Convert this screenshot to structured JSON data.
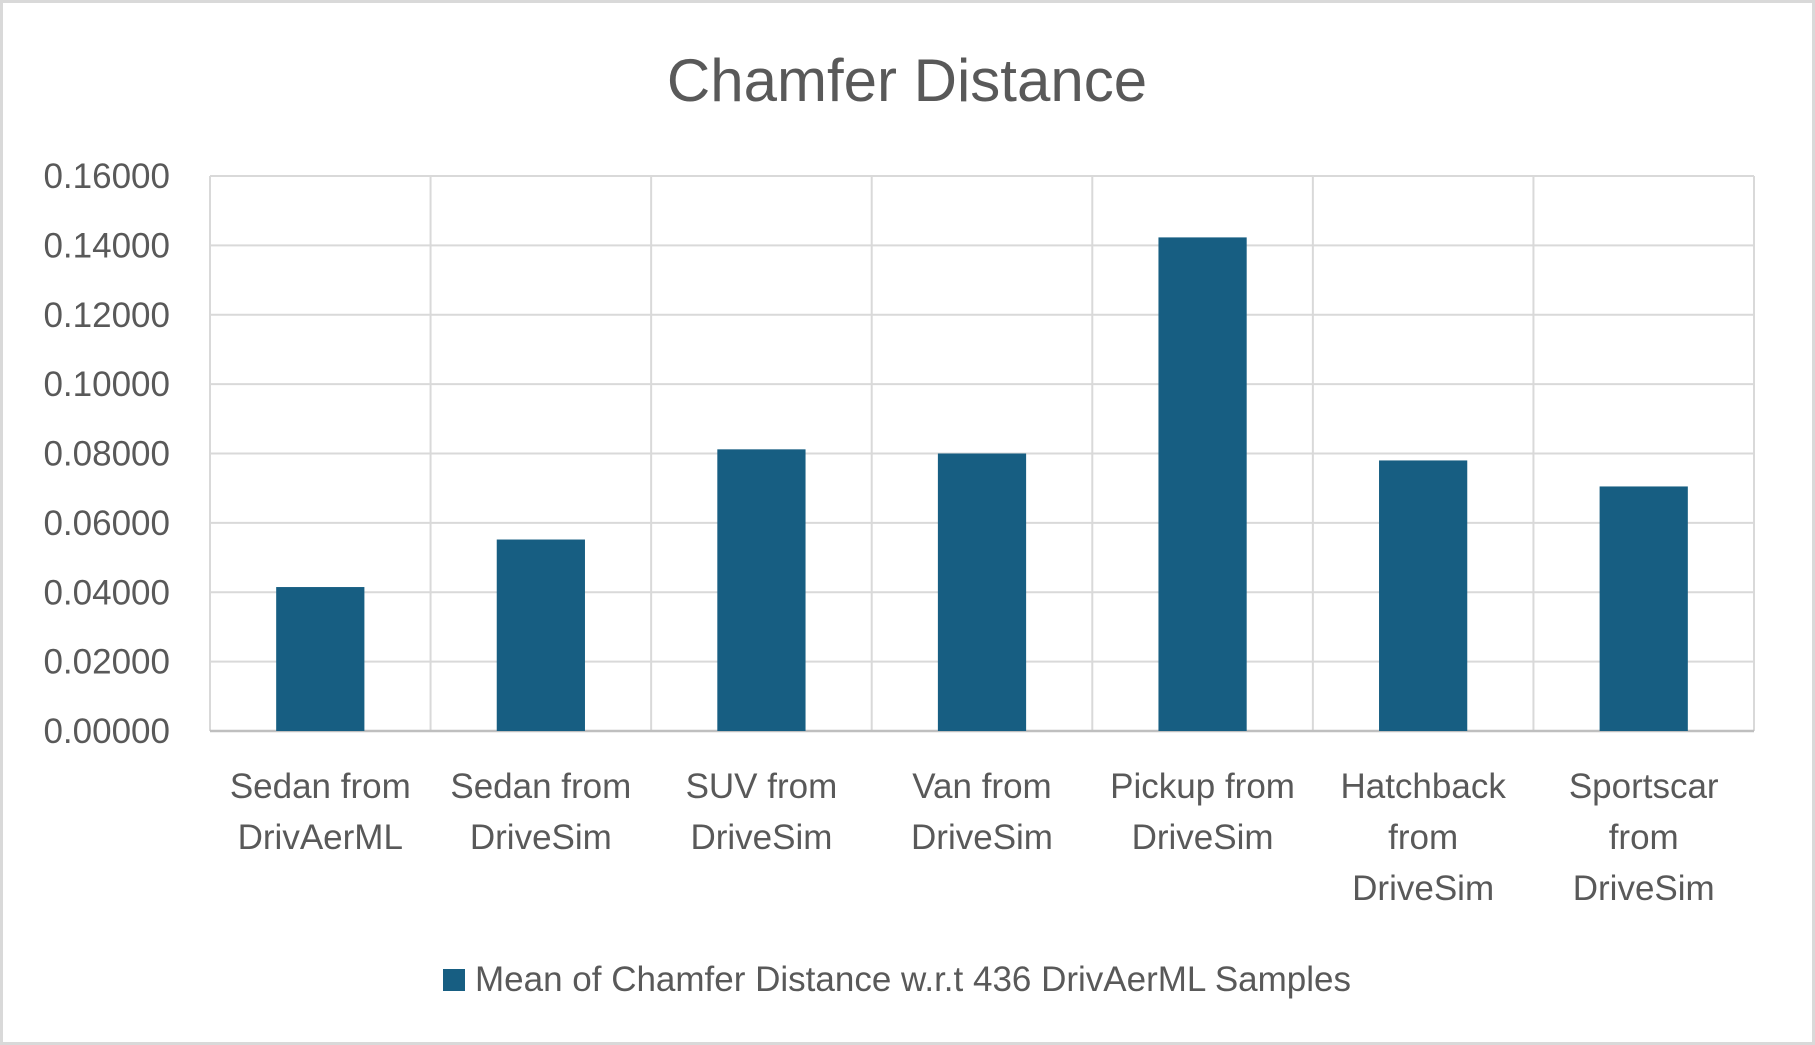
{
  "chart_data": {
    "type": "bar",
    "title": "Chamfer Distance",
    "xlabel": "",
    "ylabel": "",
    "categories": [
      "Sedan from DrivAerML",
      "Sedan from DriveSim",
      "SUV from DriveSim",
      "Van from DriveSim",
      "Pickup from DriveSim",
      "Hatchback from DriveSim",
      "Sportscar from DriveSim"
    ],
    "category_lines": [
      [
        "Sedan from",
        "DrivAerML"
      ],
      [
        "Sedan from",
        "DriveSim"
      ],
      [
        "SUV from",
        "DriveSim"
      ],
      [
        "Van from",
        "DriveSim"
      ],
      [
        "Pickup from",
        "DriveSim"
      ],
      [
        "Hatchback",
        "from",
        "DriveSim"
      ],
      [
        "Sportscar",
        "from",
        "DriveSim"
      ]
    ],
    "series": [
      {
        "name": "Mean of Chamfer Distance w.r.t 436 DrivAerML Samples",
        "color": "#175e82",
        "values": [
          0.0415,
          0.0552,
          0.0812,
          0.08,
          0.1423,
          0.078,
          0.0705
        ]
      }
    ],
    "ylim": [
      0,
      0.16
    ],
    "yticks": [
      0,
      0.02,
      0.04,
      0.06,
      0.08,
      0.1,
      0.12,
      0.14,
      0.16
    ],
    "ytick_labels": [
      "0.00000",
      "0.02000",
      "0.04000",
      "0.06000",
      "0.08000",
      "0.10000",
      "0.12000",
      "0.14000",
      "0.16000"
    ],
    "grid": true,
    "legend_position": "bottom"
  }
}
